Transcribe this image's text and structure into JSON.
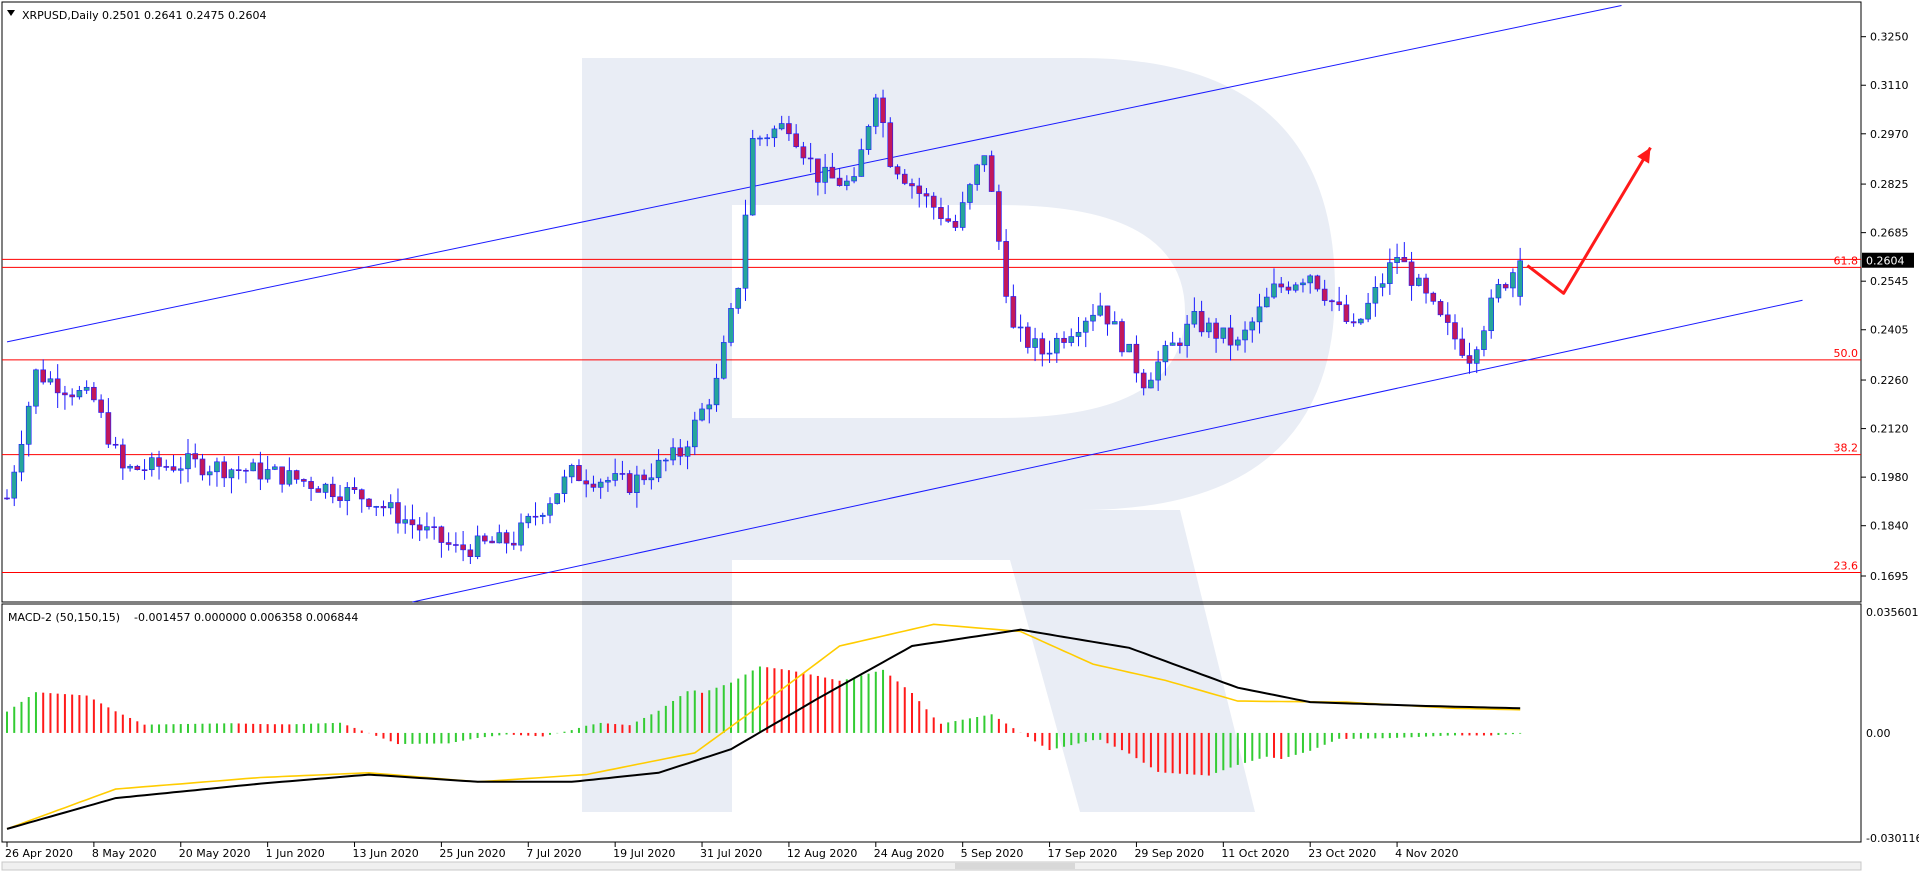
{
  "header": {
    "symbol_label": "XRPUSD,Daily",
    "ohlc_values": "0.2501 0.2641 0.2475 0.2604"
  },
  "macd_header": {
    "label": "MACD-2 (50,150,15)",
    "values": "-0.001457 0.000000 0.006358 0.006844"
  },
  "colors": {
    "bull": "#26a69a",
    "bear": "#c2185b",
    "channel": "#1a1aff",
    "fib": "#ff0000",
    "arrow": "#ff1a1a",
    "hist_up": "#33cc33",
    "hist_down": "#ff1a1a",
    "signal": "#ffcc00",
    "macd_line": "#000000",
    "watermark": "#e9edf5"
  },
  "chart_data": [
    {
      "type": "candlestick",
      "title": "XRPUSD,Daily",
      "ylim": [
        0.162,
        0.335
      ],
      "price_ticks": [
        "0.3250",
        "0.3110",
        "0.2970",
        "0.2825",
        "0.2685",
        "0.2545",
        "0.2405",
        "0.2260",
        "0.2120",
        "0.1980",
        "0.1840",
        "0.1695"
      ],
      "current_price_label": "0.2604",
      "x_labels": [
        "26 Apr 2020",
        "8 May 2020",
        "20 May 2020",
        "1 Jun 2020",
        "13 Jun 2020",
        "25 Jun 2020",
        "7 Jul 2020",
        "19 Jul 2020",
        "31 Jul 2020",
        "12 Aug 2020",
        "24 Aug 2020",
        "5 Sep 2020",
        "17 Sep 2020",
        "29 Sep 2020",
        "11 Oct 2020",
        "23 Oct 2020",
        "4 Nov 2020"
      ],
      "fib_levels": [
        {
          "label": "61.8",
          "price": 0.2585
        },
        {
          "label": "50.0",
          "price": 0.2318
        },
        {
          "label": "38.2",
          "price": 0.2045
        },
        {
          "label": "23.6",
          "price": 0.1705
        }
      ],
      "keypoints": [
        {
          "day": 0,
          "close": 0.192
        },
        {
          "day": 4,
          "close": 0.228
        },
        {
          "day": 12,
          "close": 0.22
        },
        {
          "day": 16,
          "close": 0.2
        },
        {
          "day": 25,
          "close": 0.202
        },
        {
          "day": 37,
          "close": 0.199
        },
        {
          "day": 50,
          "close": 0.192
        },
        {
          "day": 62,
          "close": 0.177
        },
        {
          "day": 70,
          "close": 0.18
        },
        {
          "day": 78,
          "close": 0.199
        },
        {
          "day": 86,
          "close": 0.196
        },
        {
          "day": 93,
          "close": 0.205
        },
        {
          "day": 98,
          "close": 0.225
        },
        {
          "day": 101,
          "close": 0.254
        },
        {
          "day": 103,
          "close": 0.295
        },
        {
          "day": 108,
          "close": 0.3
        },
        {
          "day": 112,
          "close": 0.285
        },
        {
          "day": 117,
          "close": 0.282
        },
        {
          "day": 120,
          "close": 0.31
        },
        {
          "day": 122,
          "close": 0.29
        },
        {
          "day": 126,
          "close": 0.28
        },
        {
          "day": 131,
          "close": 0.27
        },
        {
          "day": 135,
          "close": 0.292
        },
        {
          "day": 139,
          "close": 0.24
        },
        {
          "day": 143,
          "close": 0.234
        },
        {
          "day": 151,
          "close": 0.248
        },
        {
          "day": 157,
          "close": 0.226
        },
        {
          "day": 164,
          "close": 0.243
        },
        {
          "day": 170,
          "close": 0.236
        },
        {
          "day": 175,
          "close": 0.252
        },
        {
          "day": 180,
          "close": 0.257
        },
        {
          "day": 186,
          "close": 0.24
        },
        {
          "day": 192,
          "close": 0.262
        },
        {
          "day": 198,
          "close": 0.243
        },
        {
          "day": 202,
          "close": 0.233
        },
        {
          "day": 206,
          "close": 0.252
        },
        {
          "day": 209,
          "close": 0.2604
        }
      ],
      "channel_lines": [
        {
          "from": {
            "day": 0,
            "price": 0.237
          },
          "to": {
            "day": 223,
            "price": 0.334
          }
        },
        {
          "from": {
            "day": 56,
            "price": 0.162
          },
          "to": {
            "day": 248,
            "price": 0.249
          }
        }
      ],
      "forecast_arrow": [
        {
          "day": 210,
          "price": 0.259
        },
        {
          "day": 215,
          "price": 0.251
        },
        {
          "day": 227,
          "price": 0.293
        }
      ]
    },
    {
      "type": "macd",
      "title": "MACD-2 (50,150,15)",
      "ylim": [
        -0.030116,
        0.035601
      ],
      "ticks": [
        "0.035601",
        "0.00",
        "-0.030116"
      ],
      "macd_keypoints": [
        {
          "day": 0,
          "value": -0.0265
        },
        {
          "day": 15,
          "value": -0.018
        },
        {
          "day": 35,
          "value": -0.014
        },
        {
          "day": 50,
          "value": -0.0115
        },
        {
          "day": 65,
          "value": -0.0135
        },
        {
          "day": 78,
          "value": -0.0135
        },
        {
          "day": 90,
          "value": -0.011
        },
        {
          "day": 100,
          "value": -0.0045
        },
        {
          "day": 112,
          "value": 0.0095
        },
        {
          "day": 125,
          "value": 0.024
        },
        {
          "day": 140,
          "value": 0.0285
        },
        {
          "day": 155,
          "value": 0.0235
        },
        {
          "day": 170,
          "value": 0.0125
        },
        {
          "day": 180,
          "value": 0.0085
        },
        {
          "day": 195,
          "value": 0.0075
        },
        {
          "day": 209,
          "value": 0.0068
        }
      ],
      "signal_keypoints": [
        {
          "day": 0,
          "value": -0.0265
        },
        {
          "day": 15,
          "value": -0.0155
        },
        {
          "day": 35,
          "value": -0.0123
        },
        {
          "day": 50,
          "value": -0.011
        },
        {
          "day": 65,
          "value": -0.0135
        },
        {
          "day": 80,
          "value": -0.0115
        },
        {
          "day": 95,
          "value": -0.0055
        },
        {
          "day": 105,
          "value": 0.009
        },
        {
          "day": 115,
          "value": 0.024
        },
        {
          "day": 128,
          "value": 0.03
        },
        {
          "day": 140,
          "value": 0.028
        },
        {
          "day": 150,
          "value": 0.019
        },
        {
          "day": 160,
          "value": 0.0145
        },
        {
          "day": 170,
          "value": 0.0088
        },
        {
          "day": 185,
          "value": 0.0085
        },
        {
          "day": 200,
          "value": 0.0068
        },
        {
          "day": 209,
          "value": 0.0064
        }
      ]
    }
  ]
}
